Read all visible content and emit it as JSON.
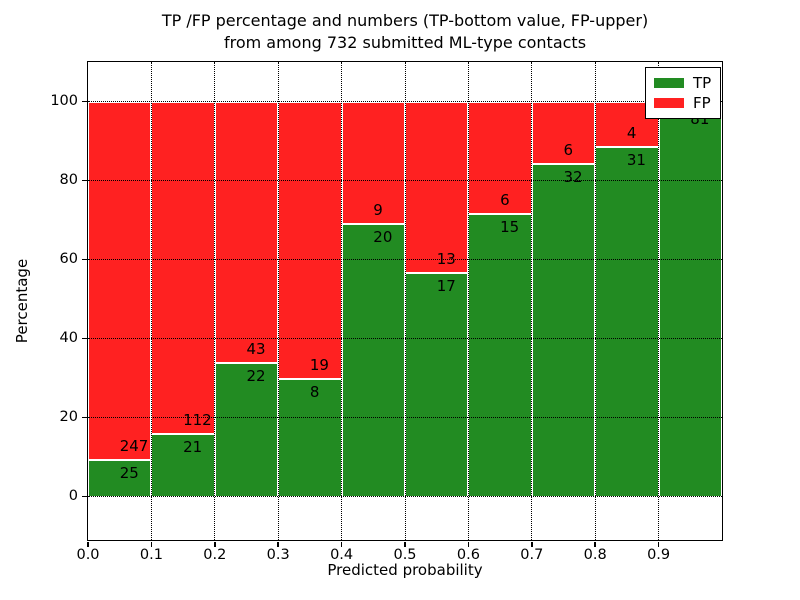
{
  "chart_data": {
    "type": "bar",
    "stacked": true,
    "normalized_to_percent": true,
    "title_line1": "TP /FP percentage and numbers (TP-bottom value, FP-upper)",
    "title_line2": "from among 732 submitted ML-type contacts",
    "xlabel": "Predicted probability",
    "ylabel": "Percentage",
    "total_contacts_in_title": 732,
    "xlim": [
      0.0,
      1.0
    ],
    "ylim": [
      -11,
      110
    ],
    "grid": true,
    "x_tick_labels": [
      "0.0",
      "0.1",
      "0.2",
      "0.3",
      "0.4",
      "0.5",
      "0.6",
      "0.7",
      "0.8",
      "0.9"
    ],
    "y_ticks": [
      0,
      20,
      40,
      60,
      80,
      100
    ],
    "y_tick_labels": [
      "0",
      "20",
      "40",
      "60",
      "80",
      "100"
    ],
    "colors": {
      "tp": "#228b22",
      "fp": "#ff2121"
    },
    "legend": {
      "position": "upper right",
      "entries": [
        {
          "label": "TP",
          "color": "#228b22"
        },
        {
          "label": "FP",
          "color": "#ff2121"
        }
      ]
    },
    "bins": [
      {
        "x0": 0.0,
        "x1": 0.1,
        "tp": 25,
        "fp": 247,
        "tp_label": "25",
        "fp_label": "247"
      },
      {
        "x0": 0.1,
        "x1": 0.2,
        "tp": 21,
        "fp": 112,
        "tp_label": "21",
        "fp_label": "112"
      },
      {
        "x0": 0.2,
        "x1": 0.3,
        "tp": 22,
        "fp": 43,
        "tp_label": "22",
        "fp_label": "43"
      },
      {
        "x0": 0.3,
        "x1": 0.4,
        "tp": 8,
        "fp": 19,
        "tp_label": "8",
        "fp_label": "19"
      },
      {
        "x0": 0.4,
        "x1": 0.5,
        "tp": 20,
        "fp": 9,
        "tp_label": "20",
        "fp_label": "9"
      },
      {
        "x0": 0.5,
        "x1": 0.6,
        "tp": 17,
        "fp": 13,
        "tp_label": "17",
        "fp_label": "13"
      },
      {
        "x0": 0.6,
        "x1": 0.7,
        "tp": 15,
        "fp": 6,
        "tp_label": "15",
        "fp_label": "6"
      },
      {
        "x0": 0.7,
        "x1": 0.8,
        "tp": 32,
        "fp": 6,
        "tp_label": "32",
        "fp_label": "6"
      },
      {
        "x0": 0.8,
        "x1": 0.9,
        "tp": 31,
        "fp": 4,
        "tp_label": "31",
        "fp_label": "4"
      },
      {
        "x0": 0.9,
        "x1": 1.0,
        "tp": 81,
        "fp": 1,
        "tp_label": "81",
        "fp_label": ""
      }
    ]
  }
}
